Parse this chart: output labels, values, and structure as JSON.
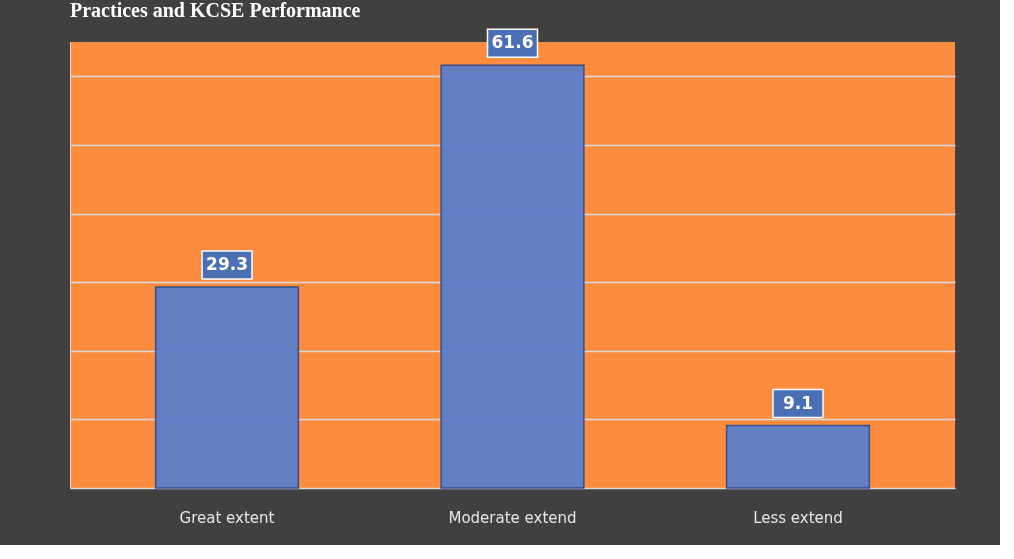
{
  "chart_data": {
    "type": "bar",
    "title": "Practices and KCSE Performance",
    "categories": [
      "Great extent",
      "Moderate extend",
      "Less extend"
    ],
    "values": [
      29.3,
      61.6,
      9.1
    ],
    "color": "#5b7fcc",
    "tick_labels": "x",
    "grid": "y",
    "data_labels": true
  }
}
